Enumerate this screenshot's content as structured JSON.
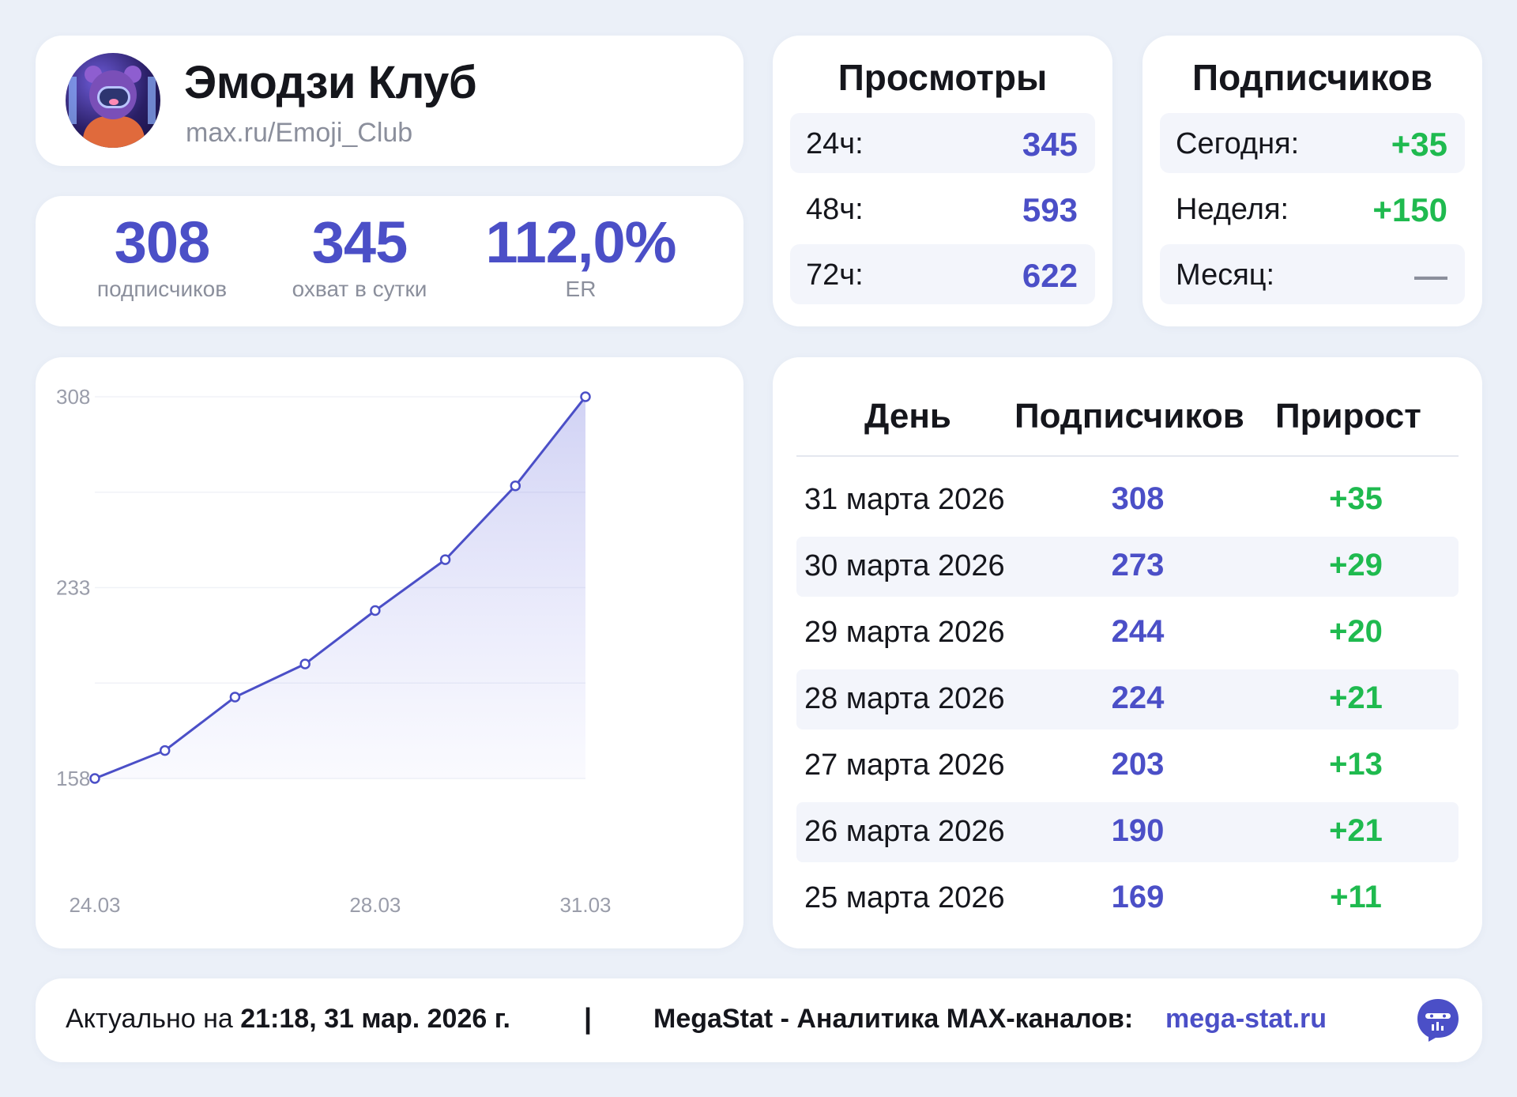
{
  "profile": {
    "name": "Эмодзи Клуб",
    "link": "max.ru/Emoji_Club"
  },
  "stats": {
    "subscribers": {
      "value": "308",
      "label": "подписчиков"
    },
    "reach": {
      "value": "345",
      "label": "охват в сутки"
    },
    "er": {
      "value": "112,0%",
      "label": "ER"
    }
  },
  "views": {
    "title": "Просмотры",
    "rows": [
      {
        "key": "24ч:",
        "value": "345"
      },
      {
        "key": "48ч:",
        "value": "593"
      },
      {
        "key": "72ч:",
        "value": "622"
      }
    ]
  },
  "subs_summary": {
    "title": "Подписчиков",
    "rows": [
      {
        "key": "Сегодня:",
        "value": "+35"
      },
      {
        "key": "Неделя:",
        "value": "+150"
      },
      {
        "key": "Месяц:",
        "value": "—"
      }
    ]
  },
  "table": {
    "headers": {
      "day": "День",
      "subs": "Подписчиков",
      "growth": "Прирост"
    },
    "rows": [
      {
        "day": "31 марта 2026",
        "subs": "308",
        "growth": "+35"
      },
      {
        "day": "30 марта 2026",
        "subs": "273",
        "growth": "+29"
      },
      {
        "day": "29 марта 2026",
        "subs": "244",
        "growth": "+20"
      },
      {
        "day": "28 марта 2026",
        "subs": "224",
        "growth": "+21"
      },
      {
        "day": "27 марта 2026",
        "subs": "203",
        "growth": "+13"
      },
      {
        "day": "26 марта 2026",
        "subs": "190",
        "growth": "+21"
      },
      {
        "day": "25 марта 2026",
        "subs": "169",
        "growth": "+11"
      }
    ]
  },
  "chart_data": {
    "type": "area",
    "x": [
      "24.03",
      "25.03",
      "26.03",
      "27.03",
      "28.03",
      "29.03",
      "30.03",
      "31.03"
    ],
    "values": [
      158,
      169,
      190,
      203,
      224,
      244,
      273,
      308
    ],
    "x_tick_labels": [
      "24.03",
      "28.03",
      "31.03"
    ],
    "y_tick_labels": [
      "308",
      "233",
      "158"
    ],
    "ylim": [
      158,
      308
    ],
    "grid": true,
    "line_color": "#4b4fc7"
  },
  "footer": {
    "prefix": "Актуально на ",
    "timestamp": "21:18, 31 мар. 2026 г.",
    "separator": "|",
    "brand": "MegaStat - Аналитика MAX-каналов:",
    "link": "mega-stat.ru"
  },
  "colors": {
    "accent": "#4b4fc7",
    "positive": "#1fba4f",
    "muted": "#8b8f9c",
    "background": "#ebf0f8"
  }
}
